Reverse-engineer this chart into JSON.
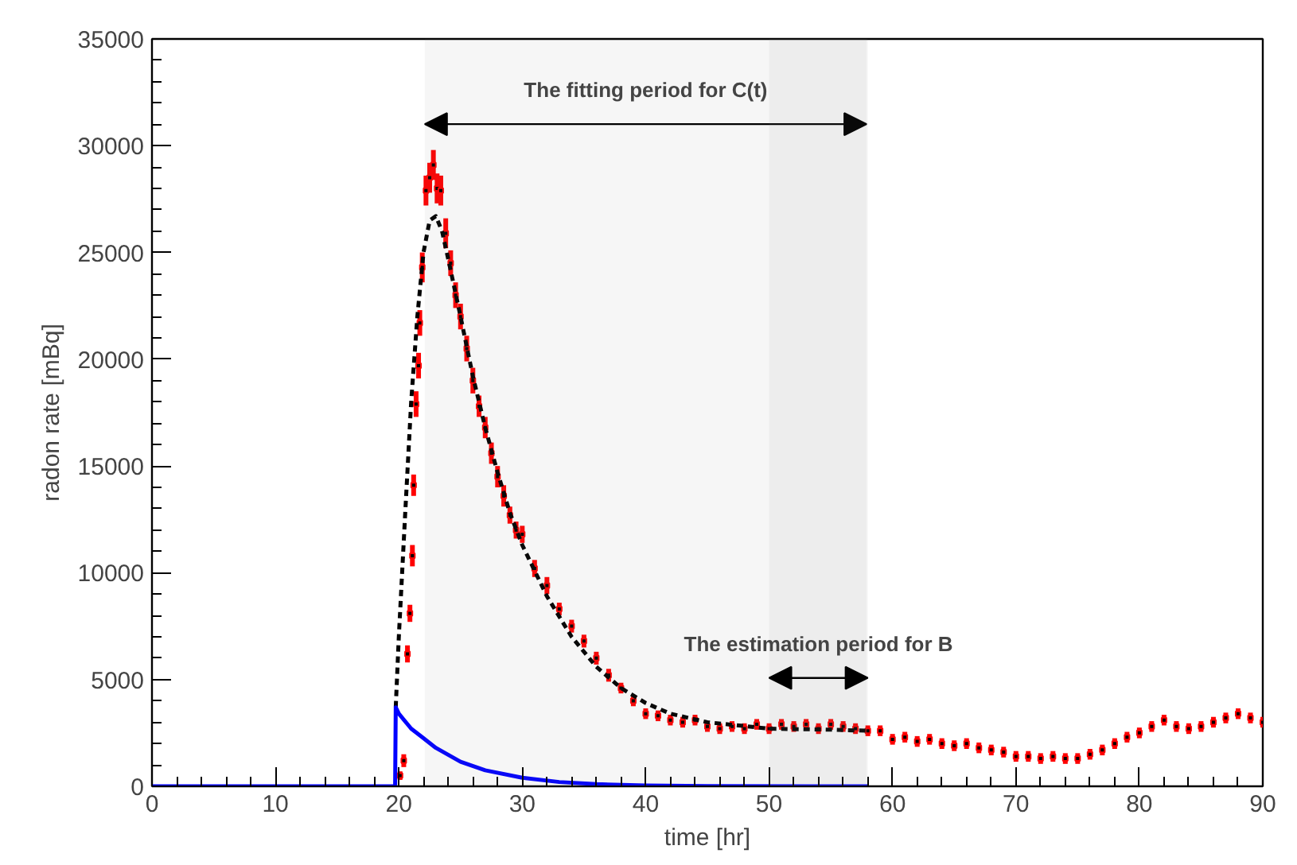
{
  "chart_data": {
    "type": "scatter",
    "xlabel": "time [hr]",
    "ylabel": "radon rate [mBq]",
    "xlim": [
      0,
      90
    ],
    "ylim": [
      0,
      35000
    ],
    "xticks": [
      0,
      10,
      20,
      30,
      40,
      50,
      60,
      70,
      80,
      90
    ],
    "yticks": [
      0,
      5000,
      10000,
      15000,
      20000,
      25000,
      30000,
      35000
    ],
    "grid": false,
    "bands": [
      {
        "axis": "x",
        "from": 22.1,
        "to": 57.9,
        "label": "The fitting period for C(t)"
      },
      {
        "axis": "x",
        "from": 50,
        "to": 58,
        "label": "The estimation period for B"
      }
    ],
    "series": [
      {
        "color": "#ff0000",
        "marker": "square",
        "x": [
          20.1,
          20.4,
          20.7,
          20.9,
          21.1,
          21.2,
          21.4,
          21.6,
          21.7,
          21.9,
          22.2,
          22.5,
          22.8,
          23.1,
          23.4,
          23.8,
          24.2,
          24.6,
          25,
          25.5,
          26,
          26.5,
          27,
          27.5,
          28,
          28.5,
          29,
          29.5,
          30,
          31,
          32,
          33,
          34,
          35,
          36,
          37,
          38,
          39,
          40,
          41,
          42,
          43,
          44,
          45,
          46,
          47,
          48,
          49,
          50,
          51,
          52,
          53,
          54,
          55,
          56,
          57,
          58,
          59,
          60,
          61,
          62,
          63,
          64,
          65,
          66,
          67,
          68,
          69,
          70,
          71,
          72,
          73,
          74,
          75,
          76,
          77,
          78,
          79,
          80,
          81,
          82,
          83,
          84,
          85,
          86,
          87,
          88,
          89,
          90
        ],
        "values": [
          500,
          1200,
          6200,
          8100,
          10800,
          14100,
          17900,
          19700,
          21700,
          24300,
          27900,
          28500,
          29100,
          28000,
          27900,
          25900,
          24500,
          23000,
          22000,
          20500,
          19000,
          17800,
          16800,
          15600,
          14500,
          13600,
          12700,
          12000,
          11800,
          10200,
          9400,
          8300,
          7500,
          6800,
          6000,
          5200,
          4600,
          4000,
          3400,
          3300,
          3100,
          3000,
          3100,
          2800,
          2700,
          2800,
          2700,
          2900,
          2700,
          2900,
          2800,
          2900,
          2700,
          2900,
          2800,
          2700,
          2600,
          2600,
          2200,
          2300,
          2100,
          2200,
          2000,
          1900,
          2000,
          1800,
          1700,
          1600,
          1400,
          1400,
          1300,
          1400,
          1300,
          1300,
          1500,
          1700,
          2000,
          2300,
          2500,
          2800,
          3100,
          2800,
          2700,
          2800,
          3000,
          3200,
          3400,
          3200,
          3000
        ],
        "errors": [
          200,
          300,
          400,
          400,
          500,
          500,
          600,
          600,
          600,
          700,
          700,
          700,
          700,
          700,
          700,
          700,
          600,
          600,
          600,
          600,
          600,
          500,
          500,
          500,
          500,
          500,
          400,
          400,
          400,
          400,
          400,
          300,
          300,
          300,
          300,
          300,
          250,
          250,
          250,
          250,
          250,
          250,
          250,
          250,
          250,
          250,
          250,
          250,
          250,
          250,
          250,
          250,
          250,
          250,
          250,
          250,
          250,
          250,
          250,
          250,
          250,
          250,
          250,
          250,
          250,
          250,
          250,
          250,
          250,
          250,
          250,
          250,
          250,
          250,
          250,
          250,
          250,
          250,
          250,
          250,
          250,
          250,
          250,
          250,
          250,
          250,
          250,
          250,
          250
        ]
      },
      {
        "type": "line",
        "color": "#000000",
        "line_style": "dashed",
        "x": [
          19.75,
          20,
          20.5,
          21,
          21.5,
          22,
          22.5,
          23,
          23.5,
          24,
          25,
          26,
          27,
          28,
          29,
          30,
          32,
          34,
          36,
          38,
          40,
          42,
          45,
          50,
          55,
          58
        ],
        "values": [
          3700,
          7000,
          12600,
          18000,
          22000,
          25000,
          26500,
          26700,
          26000,
          24700,
          22000,
          19200,
          16800,
          14700,
          12800,
          11300,
          8900,
          7000,
          5600,
          4600,
          3900,
          3400,
          3000,
          2700,
          2650,
          2600
        ]
      },
      {
        "type": "line",
        "color": "#0000ff",
        "line_style": "solid",
        "x": [
          0,
          19.7,
          19.75,
          20,
          21,
          22,
          23,
          25,
          27,
          30,
          33,
          36,
          40,
          45,
          58
        ],
        "values": [
          0,
          0,
          3700,
          3400,
          2700,
          2250,
          1800,
          1150,
          750,
          400,
          200,
          100,
          40,
          10,
          0
        ]
      }
    ]
  }
}
